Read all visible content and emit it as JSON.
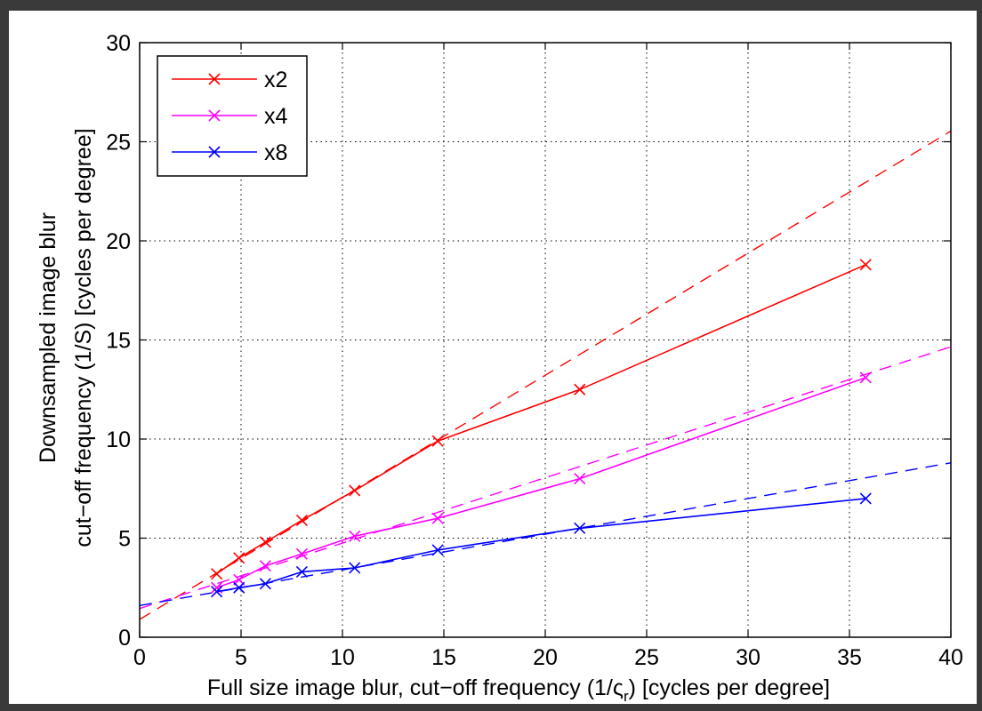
{
  "chart_data": {
    "type": "line",
    "title": "",
    "xlabel": {
      "prefix": "Full size image blur, cut−off frequency (1/",
      "symbol": "ς",
      "subscript": "r",
      "suffix": ") [cycles per degree]"
    },
    "ylabel": {
      "line1": "Downsampled image blur",
      "line2": "cut−off frequency (1/S) [cycles per degree]"
    },
    "xlim": [
      0,
      40
    ],
    "ylim": [
      0,
      30
    ],
    "xticks": [
      0,
      5,
      10,
      15,
      20,
      25,
      30,
      35,
      40
    ],
    "yticks": [
      0,
      5,
      10,
      15,
      20,
      25,
      30
    ],
    "grid": true,
    "legend_position": "top-left",
    "series": [
      {
        "name": "x2",
        "color": "#ff0000",
        "marker": "x",
        "x": [
          3.8,
          4.9,
          6.2,
          8.0,
          10.6,
          14.7,
          21.7,
          35.8
        ],
        "y": [
          3.2,
          4.0,
          4.8,
          5.9,
          7.4,
          9.9,
          12.5,
          18.8
        ],
        "fit": {
          "slope": 0.616,
          "intercept": 0.9,
          "x_range": [
            0,
            40
          ]
        }
      },
      {
        "name": "x4",
        "color": "#ff00ff",
        "marker": "x",
        "x": [
          3.8,
          4.9,
          6.2,
          8.0,
          10.6,
          14.7,
          21.7,
          35.8
        ],
        "y": [
          2.5,
          2.9,
          3.6,
          4.2,
          5.1,
          6.0,
          8.0,
          13.1
        ],
        "fit": {
          "slope": 0.33,
          "intercept": 1.45,
          "x_range": [
            0,
            40
          ]
        }
      },
      {
        "name": "x8",
        "color": "#0000ff",
        "marker": "x",
        "x": [
          3.8,
          4.9,
          6.2,
          8.0,
          10.6,
          14.7,
          21.7,
          35.8
        ],
        "y": [
          2.3,
          2.5,
          2.7,
          3.3,
          3.5,
          4.4,
          5.5,
          7.0
        ],
        "fit": {
          "slope": 0.18,
          "intercept": 1.6,
          "x_range": [
            0,
            40
          ]
        }
      }
    ]
  }
}
